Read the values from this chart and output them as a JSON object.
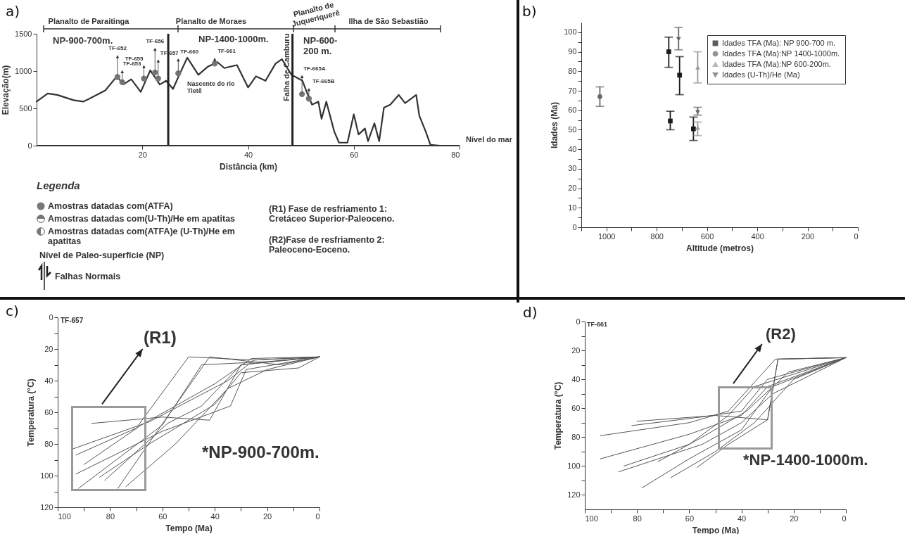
{
  "chart_data": [
    {
      "type": "line",
      "title": "a)",
      "xlabel": "Distância (km)",
      "ylabel": "Elevação(m)",
      "xlim": [
        0,
        80
      ],
      "ylim": [
        0,
        1500
      ],
      "xticks": [
        20,
        40,
        60,
        80
      ],
      "yticks": [
        0,
        500,
        1000,
        1500
      ],
      "series": [
        {
          "color": "#333333",
          "x": [
            0,
            2.1,
            3.9,
            7,
            8.8,
            10,
            13,
            15.2,
            16.4,
            17.9,
            19.7,
            21.5,
            23.3,
            24.5,
            25.8,
            27,
            28.5,
            30.6,
            32.4,
            34.2,
            35.5,
            37.9,
            40,
            41.5,
            43.3,
            45.2,
            46.4,
            48.2,
            50.3,
            51.2,
            52.1,
            53.3,
            53.9,
            54.8,
            56.3,
            57.2,
            58.8,
            60,
            60.9,
            62.1,
            62.7,
            63.9,
            64.8,
            65.7,
            66.9,
            68.5,
            69.7,
            71.8,
            72.4,
            73.6,
            74.5,
            76.3
          ],
          "values": [
            590,
            700,
            680,
            610,
            590,
            630,
            740,
            930,
            820,
            890,
            720,
            1010,
            820,
            870,
            760,
            950,
            1180,
            950,
            1060,
            1120,
            1040,
            1080,
            780,
            930,
            870,
            1100,
            1160,
            950,
            870,
            700,
            550,
            590,
            360,
            590,
            190,
            40,
            40,
            420,
            150,
            230,
            60,
            300,
            60,
            510,
            550,
            680,
            570,
            680,
            400,
            190,
            10,
            0
          ]
        },
        {
          "type": "scatter",
          "color": "#777777",
          "marker": "circle",
          "x": [
            15.3,
            16.2,
            20.3,
            22.4,
            23,
            26.8,
            33.7,
            50.2,
            51.5
          ],
          "values": [
            920,
            850,
            900,
            980,
            900,
            970,
            1100,
            690,
            630
          ]
        }
      ],
      "ref_lines": [
        {
          "axis": "x",
          "value": 24.9,
          "color": "#222222"
        },
        {
          "axis": "x",
          "value": 48.4,
          "label": "Falha de Camburu",
          "color": "#222222"
        },
        {
          "axis": "y",
          "value": 0,
          "label": "Nível do mar",
          "color": "#333333"
        }
      ],
      "annotations": [
        {
          "text": "TF-652",
          "x": 15.3,
          "y": 920
        },
        {
          "text": "TF-653",
          "x": 16.2,
          "y": 850
        },
        {
          "text": "TF-655",
          "x": 20.3,
          "y": 900
        },
        {
          "text": "TF-656",
          "x": 22.4,
          "y": 980
        },
        {
          "text": "TF-657",
          "x": 23,
          "y": 900
        },
        {
          "text": "TF-660",
          "x": 26.8,
          "y": 970
        },
        {
          "text": "TF-661",
          "x": 33.7,
          "y": 1100
        },
        {
          "text": "TF-665A",
          "x": 50.2,
          "y": 690
        },
        {
          "text": "TF-665B",
          "x": 51.5,
          "y": 630
        },
        "Planalto de Paraitinga",
        "Planalto de Moraes",
        "Planalto de\nJuqueriquerê",
        "Ilha de São Sebastião",
        "NP-900-700m.",
        "NP-1400-1000m.",
        "NP-600-\n200 m.",
        "Nascente do rio Tietê",
        "Legenda",
        "Amostras datadas com(ATFA)",
        "Amostras datadas com(U-Th)/He em apatitas",
        "Amostras datadas com(ATFA)e (U-Th)/He em apatitas",
        "Nível de Paleo-superfície (NP)",
        "Falhas Normais",
        "(R1) Fase de resfriamento 1: Cretáceo Superior-Paleoceno.",
        "(R2)Fase de resfriamento 2: Paleoceno-Eoceno."
      ]
    },
    {
      "type": "scatter",
      "title": "b)",
      "xlabel": "Altitude (metros)",
      "ylabel": "Idades (Ma)",
      "xlim": [
        1100,
        0
      ],
      "ylim": [
        0,
        105
      ],
      "xticks": [
        {
          "value": 1100,
          "label": null
        },
        1000,
        {
          "value": 900,
          "label": null
        },
        800,
        {
          "value": 700,
          "label": null
        },
        600,
        {
          "value": 500,
          "label": null
        },
        400,
        {
          "value": 300,
          "label": null
        },
        200,
        {
          "value": 100,
          "label": null
        },
        0
      ],
      "yticks": [
        0,
        {
          "value": 5,
          "label": null
        },
        10,
        {
          "value": 15,
          "label": null
        },
        20,
        {
          "value": 25,
          "label": null
        },
        30,
        {
          "value": 35,
          "label": null
        },
        40,
        {
          "value": 45,
          "label": null
        },
        50,
        {
          "value": 55,
          "label": null
        },
        60,
        {
          "value": 65,
          "label": null
        },
        70,
        {
          "value": 75,
          "label": null
        },
        80,
        {
          "value": 85,
          "label": null
        },
        90,
        {
          "value": 95,
          "label": null
        },
        100
      ],
      "legend": "top right",
      "series": [
        {
          "name": "Idades TFA (Ma): NP 900-700 m.",
          "color": "#1a1a1a",
          "marker": "square",
          "x": [
            752,
            709,
            746,
            654
          ],
          "values": [
            90,
            78,
            54.5,
            50.5
          ],
          "errors": [
            [
              82,
              97.5
            ],
            [
              68,
              87.5
            ],
            [
              50,
              59.5
            ],
            [
              44.5,
              56.5
            ]
          ]
        },
        {
          "name": "Idades TFA (Ma):NP 1400-1000m.",
          "color": "#666666",
          "marker": "circle",
          "x": [
            1026
          ],
          "values": [
            67
          ],
          "errors": [
            [
              62,
              72
            ]
          ]
        },
        {
          "name": "Idades TFA (Ma):NP 600-200m.",
          "color": "#999999",
          "marker": "triangle",
          "x": [
            637,
            637
          ],
          "values": [
            82,
            51
          ],
          "errors": [
            [
              74,
              90
            ],
            [
              47,
              54
            ]
          ]
        },
        {
          "name": "Idades (U-Th)/He (Ma)",
          "color": "#666666",
          "marker": "triangle-down",
          "x": [
            713,
            637
          ],
          "values": [
            96.5,
            59
          ],
          "errors": [
            [
              91,
              102.5
            ],
            [
              57.5,
              61.5
            ]
          ]
        }
      ]
    },
    {
      "type": "line",
      "title": "c)",
      "xlabel": "Tempo (Ma)",
      "ylabel": "Temperatura (°C)",
      "xlim": [
        100,
        0
      ],
      "ylim": [
        120,
        0
      ],
      "xticks": [
        100,
        {
          "value": 90,
          "label": null
        },
        80,
        {
          "value": 70,
          "label": null
        },
        60,
        {
          "value": 50,
          "label": null
        },
        40,
        {
          "value": 30,
          "label": null
        },
        20,
        {
          "value": 10,
          "label": null
        },
        0
      ],
      "yticks": [
        0,
        {
          "value": 10,
          "label": null
        },
        20,
        {
          "value": 30,
          "label": null
        },
        40,
        {
          "value": 50,
          "label": null
        },
        60,
        {
          "value": 70,
          "label": null
        },
        80,
        {
          "value": 90,
          "label": null
        },
        100,
        {
          "value": 110,
          "label": null
        },
        120
      ],
      "series": [
        {
          "color": "#555555",
          "x": [
            92,
            60,
            45,
            20,
            0
          ],
          "values": [
            108,
            68,
            30,
            28,
            25
          ]
        },
        {
          "color": "#555555",
          "x": [
            94,
            65,
            35,
            25,
            0
          ],
          "values": [
            83,
            66,
            40,
            27,
            25
          ]
        },
        {
          "color": "#555555",
          "x": [
            93,
            70,
            50,
            25,
            0
          ],
          "values": [
            87,
            70,
            25,
            27,
            25
          ]
        },
        {
          "color": "#555555",
          "x": [
            93,
            60,
            34,
            28,
            0
          ],
          "values": [
            99,
            72,
            56,
            33,
            25
          ]
        },
        {
          "color": "#555555",
          "x": [
            87,
            60,
            42,
            30,
            0
          ],
          "values": [
            67,
            63,
            65,
            30,
            25
          ]
        },
        {
          "color": "#555555",
          "x": [
            77,
            62,
            42,
            15,
            0
          ],
          "values": [
            108,
            72,
            25,
            30,
            25
          ]
        },
        {
          "color": "#555555",
          "x": [
            74,
            55,
            35,
            20,
            0
          ],
          "values": [
            107,
            80,
            45,
            33,
            25
          ]
        },
        {
          "color": "#555555",
          "x": [
            84,
            65,
            40,
            30,
            8,
            0
          ],
          "values": [
            101,
            80,
            55,
            35,
            32,
            25
          ]
        },
        {
          "color": "#555555",
          "x": [
            90,
            68,
            40,
            26,
            0
          ],
          "values": [
            93,
            68,
            42,
            26,
            25
          ]
        },
        {
          "color": "#555555",
          "x": [
            82,
            58,
            45,
            30,
            0
          ],
          "values": [
            103,
            67,
            56,
            30,
            25
          ]
        }
      ],
      "annotations": [
        "TF-657",
        "(R1)",
        "*NP-900-700m."
      ]
    },
    {
      "type": "line",
      "title": "d)",
      "xlabel": "Tempo (Ma)",
      "ylabel": "Temperatura (°C)",
      "xlim": [
        100,
        0
      ],
      "ylim": [
        130,
        0
      ],
      "xticks": [
        100,
        {
          "value": 90,
          "label": null
        },
        80,
        {
          "value": 70,
          "label": null
        },
        60,
        {
          "value": 50,
          "label": null
        },
        40,
        {
          "value": 30,
          "label": null
        },
        20,
        {
          "value": 10,
          "label": null
        },
        0
      ],
      "yticks": [
        0,
        {
          "value": 10,
          "label": null
        },
        20,
        {
          "value": 30,
          "label": null
        },
        40,
        {
          "value": 50,
          "label": null
        },
        60,
        {
          "value": 70,
          "label": null
        },
        80,
        {
          "value": 90,
          "label": null
        },
        100,
        {
          "value": 110,
          "label": null
        },
        120
      ],
      "series": [
        {
          "color": "#555555",
          "x": [
            94,
            60,
            45,
            27,
            0
          ],
          "values": [
            79,
            70,
            62,
            26,
            25
          ]
        },
        {
          "color": "#555555",
          "x": [
            94,
            60,
            40,
            30,
            0
          ],
          "values": [
            95,
            78,
            65,
            45,
            25
          ]
        },
        {
          "color": "#555555",
          "x": [
            87,
            55,
            40,
            28,
            0
          ],
          "values": [
            104,
            85,
            70,
            50,
            25
          ]
        },
        {
          "color": "#555555",
          "x": [
            78,
            60,
            40,
            28,
            0
          ],
          "values": [
            115,
            95,
            75,
            45,
            25
          ]
        },
        {
          "color": "#555555",
          "x": [
            82,
            55,
            40,
            30,
            0
          ],
          "values": [
            72,
            66,
            62,
            40,
            25
          ]
        },
        {
          "color": "#555555",
          "x": [
            67,
            50,
            35,
            20,
            0
          ],
          "values": [
            108,
            90,
            70,
            40,
            25
          ]
        },
        {
          "color": "#555555",
          "x": [
            57,
            45,
            30,
            26,
            0
          ],
          "values": [
            101,
            85,
            68,
            26,
            25
          ]
        },
        {
          "color": "#555555",
          "x": [
            85,
            60,
            45,
            35,
            0
          ],
          "values": [
            100,
            85,
            65,
            45,
            25
          ]
        },
        {
          "color": "#555555",
          "x": [
            80,
            50,
            30,
            26,
            0
          ],
          "values": [
            69,
            65,
            68,
            26,
            25
          ]
        },
        {
          "color": "#555555",
          "x": [
            72,
            55,
            38,
            22,
            0
          ],
          "values": [
            97,
            80,
            62,
            35,
            25
          ]
        }
      ],
      "annotations": [
        "TF-661",
        "(R2)",
        "*NP-1400-1000m."
      ]
    }
  ]
}
